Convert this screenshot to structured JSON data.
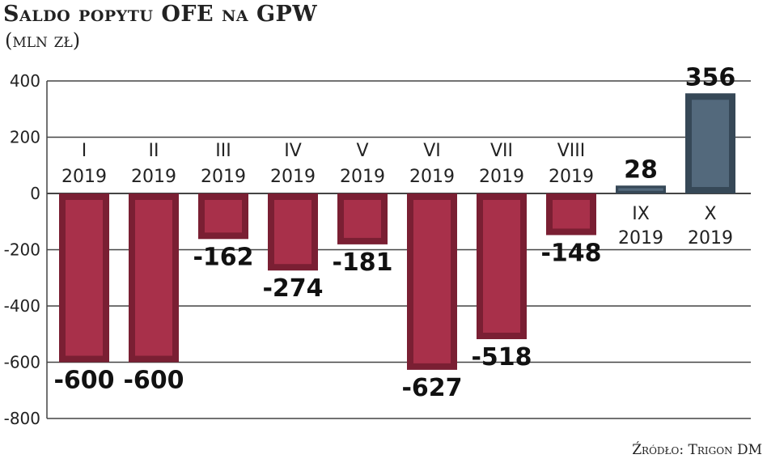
{
  "chart_data": {
    "type": "bar",
    "title": "Saldo popytu OFE na GPW",
    "subtitle": "(mln zł)",
    "source": "Źródło: Trigon DM",
    "categories": [
      [
        "I",
        "2019"
      ],
      [
        "II",
        "2019"
      ],
      [
        "III",
        "2019"
      ],
      [
        "IV",
        "2019"
      ],
      [
        "V",
        "2019"
      ],
      [
        "VI",
        "2019"
      ],
      [
        "VII",
        "2019"
      ],
      [
        "VIII",
        "2019"
      ],
      [
        "IX",
        "2019"
      ],
      [
        "X",
        "2019"
      ]
    ],
    "values": [
      -600,
      -600,
      -162,
      -274,
      -181,
      -627,
      -518,
      -148,
      28,
      356
    ],
    "value_labels": [
      "-600",
      "-600",
      "-162",
      "-274",
      "-181",
      "-627",
      "-518",
      "-148",
      "28",
      "356"
    ],
    "ylim": [
      -800,
      400
    ],
    "yticks": [
      400,
      200,
      0,
      -200,
      -400,
      -600,
      -800
    ],
    "ytick_labels": [
      "400",
      "200",
      "0",
      "-200",
      "-400",
      "-600",
      "-800"
    ],
    "grid": true,
    "colors": {
      "negative": "#a8304a",
      "negative_edge": "#7a1f33",
      "positive": "#53697c",
      "positive_edge": "#364857"
    }
  }
}
